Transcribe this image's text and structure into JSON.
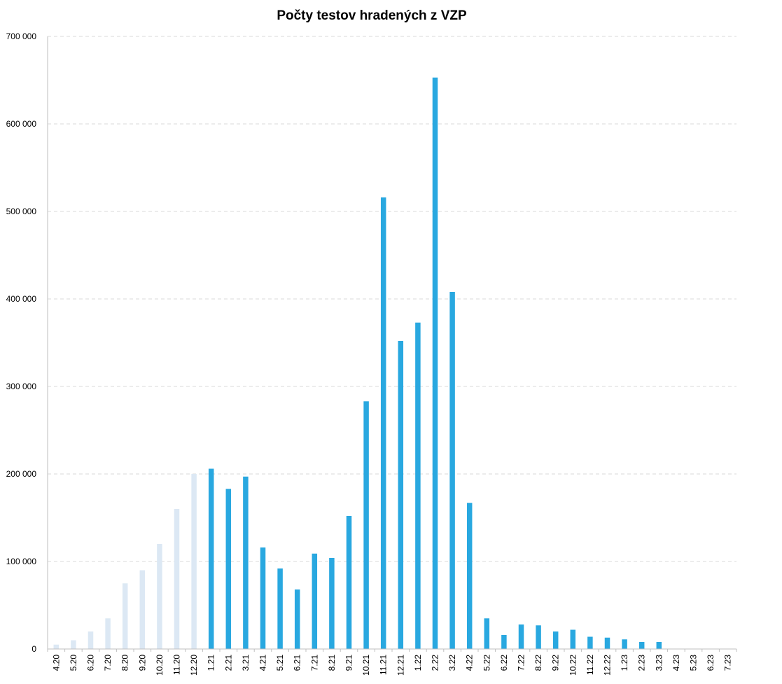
{
  "chart_data": {
    "type": "bar",
    "title": "Počty testov hradených z VZP",
    "xlabel": "",
    "ylabel": "",
    "ylim": [
      0,
      700000
    ],
    "yticks": [
      0,
      100000,
      200000,
      300000,
      400000,
      500000,
      600000,
      700000
    ],
    "ytick_labels": [
      "0",
      "100 000",
      "200 000",
      "300 000",
      "400 000",
      "500 000",
      "600 000",
      "700 000"
    ],
    "grid": true,
    "legend": "none",
    "categories": [
      "4.20",
      "5.20",
      "6.20",
      "7.20",
      "8.20",
      "9.20",
      "10.20",
      "11.20",
      "12.20",
      "1.21",
      "2.21",
      "3.21",
      "4.21",
      "5.21",
      "6.21",
      "7.21",
      "8.21",
      "9.21",
      "10.21",
      "11.21",
      "12.21",
      "1.22",
      "2.22",
      "3.22",
      "4.22",
      "5.22",
      "6.22",
      "7.22",
      "8.22",
      "9.22",
      "10.22",
      "11.22",
      "12.22",
      "1.23",
      "2.23",
      "3.23",
      "4.23",
      "5.23",
      "6.23",
      "7.23"
    ],
    "values": [
      5000,
      10000,
      20000,
      35000,
      75000,
      90000,
      120000,
      160000,
      200000,
      206000,
      183000,
      197000,
      116000,
      92000,
      68000,
      109000,
      104000,
      152000,
      283000,
      516000,
      352000,
      373000,
      653000,
      408000,
      167000,
      35000,
      16000,
      28000,
      27000,
      20000,
      22000,
      14000,
      13000,
      11000,
      8000,
      8000,
      0,
      0,
      0,
      0
    ],
    "bar_colors": [
      "#dce8f4",
      "#dce8f4",
      "#dce8f4",
      "#dce8f4",
      "#dce8f4",
      "#dce8f4",
      "#dce8f4",
      "#dce8f4",
      "#dce8f4",
      "#29a8e0",
      "#29a8e0",
      "#29a8e0",
      "#29a8e0",
      "#29a8e0",
      "#29a8e0",
      "#29a8e0",
      "#29a8e0",
      "#29a8e0",
      "#29a8e0",
      "#29a8e0",
      "#29a8e0",
      "#29a8e0",
      "#29a8e0",
      "#29a8e0",
      "#29a8e0",
      "#29a8e0",
      "#29a8e0",
      "#29a8e0",
      "#29a8e0",
      "#29a8e0",
      "#29a8e0",
      "#29a8e0",
      "#29a8e0",
      "#29a8e0",
      "#29a8e0",
      "#29a8e0",
      "#29a8e0",
      "#29a8e0",
      "#29a8e0",
      "#29a8e0"
    ]
  }
}
